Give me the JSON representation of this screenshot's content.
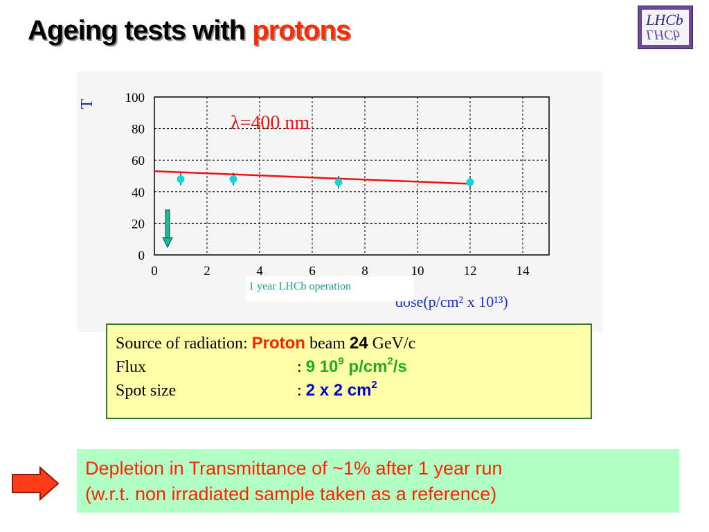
{
  "slide": {
    "title_part1": "Ageing tests with ",
    "title_part2": "protons",
    "logo_text": "LHCb"
  },
  "chart_data": {
    "type": "scatter",
    "title": "",
    "annotation": "λ=400 nm",
    "xlabel": "dose(p/cm² x 10¹³)",
    "ylabel": "T",
    "xlim": [
      0,
      15
    ],
    "ylim": [
      0,
      100
    ],
    "xticks": [
      0,
      2,
      4,
      6,
      8,
      10,
      12,
      14
    ],
    "yticks": [
      0,
      20,
      40,
      60,
      80,
      100
    ],
    "series": [
      {
        "x": [
          1,
          3,
          7,
          12
        ],
        "y": [
          48,
          48,
          46,
          46
        ]
      }
    ],
    "fit_line": {
      "x": [
        0,
        12
      ],
      "y": [
        53,
        45
      ]
    },
    "marker": {
      "x": 0.5,
      "label": "1 year LHCb operation"
    },
    "colors": {
      "points": "#12d6d6",
      "fit": "#ee1111",
      "annotation": "#ee1111",
      "axis_text": "#1a33cc",
      "marker_arrow": "#1fb89a"
    }
  },
  "info": {
    "row1_label": "Source of radiation: ",
    "row1_particle": "Proton",
    "row1_mid": " beam ",
    "row1_energy": "24",
    "row1_unit": " GeV/c",
    "row2_label": "Flux",
    "row2_colon": ": ",
    "row2_value": "9 10",
    "row2_exp": "9",
    "row2_unit": "  p/cm",
    "row2_unit_exp": "2",
    "row2_unit_tail": "/s",
    "row3_label": "Spot size",
    "row3_colon": ": ",
    "row3_value": "2 x 2  cm",
    "row3_exp": "2"
  },
  "conclusion": {
    "line1": "Depletion in Transmittance of ~1% after 1 year run",
    "line2": "(w.r.t. non irradiated sample taken as a reference)"
  }
}
